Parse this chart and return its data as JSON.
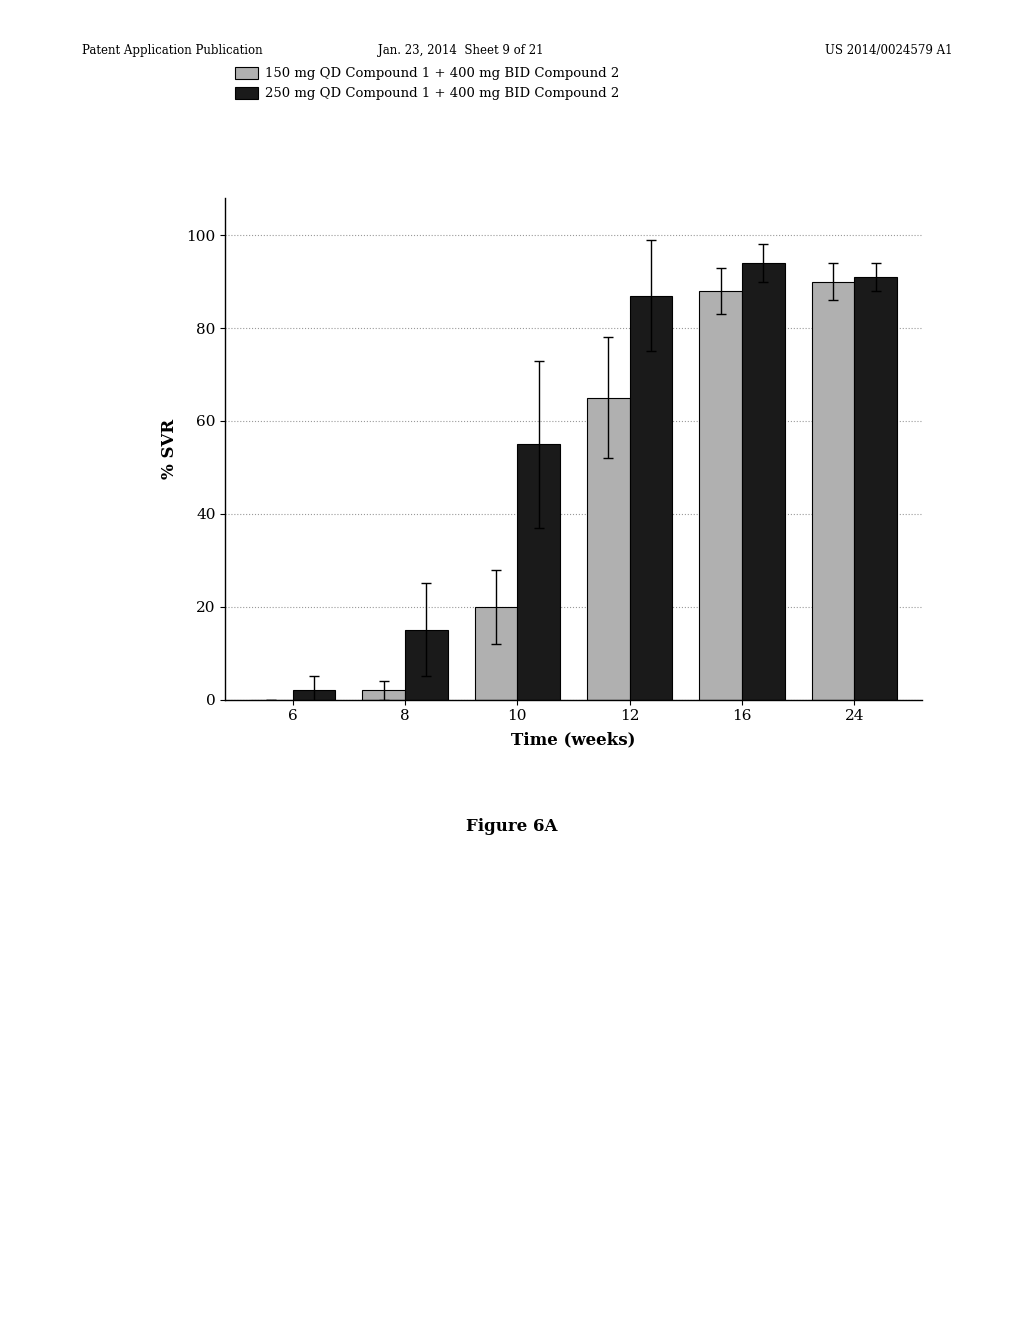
{
  "weeks": [
    6,
    8,
    10,
    12,
    16,
    24
  ],
  "gray_values": [
    0,
    2,
    20,
    65,
    88,
    90
  ],
  "black_values": [
    2,
    15,
    55,
    87,
    94,
    91
  ],
  "gray_errors": [
    0,
    2,
    8,
    13,
    5,
    4
  ],
  "black_errors": [
    3,
    10,
    18,
    12,
    4,
    3
  ],
  "gray_label": "150 mg QD Compound 1 + 400 mg BID Compound 2",
  "black_label": "250 mg QD Compound 1 + 400 mg BID Compound 2",
  "ylabel": "% SVR",
  "xlabel": "Time (weeks)",
  "ylim": [
    0,
    108
  ],
  "yticks": [
    0,
    20,
    40,
    60,
    80,
    100
  ],
  "figure_label": "Figure 6A",
  "gray_color": "#b0b0b0",
  "black_color": "#1a1a1a",
  "background_color": "#ffffff",
  "header_left": "Patent Application Publication",
  "header_mid": "Jan. 23, 2014  Sheet 9 of 21",
  "header_right": "US 2014/0024579 A1"
}
